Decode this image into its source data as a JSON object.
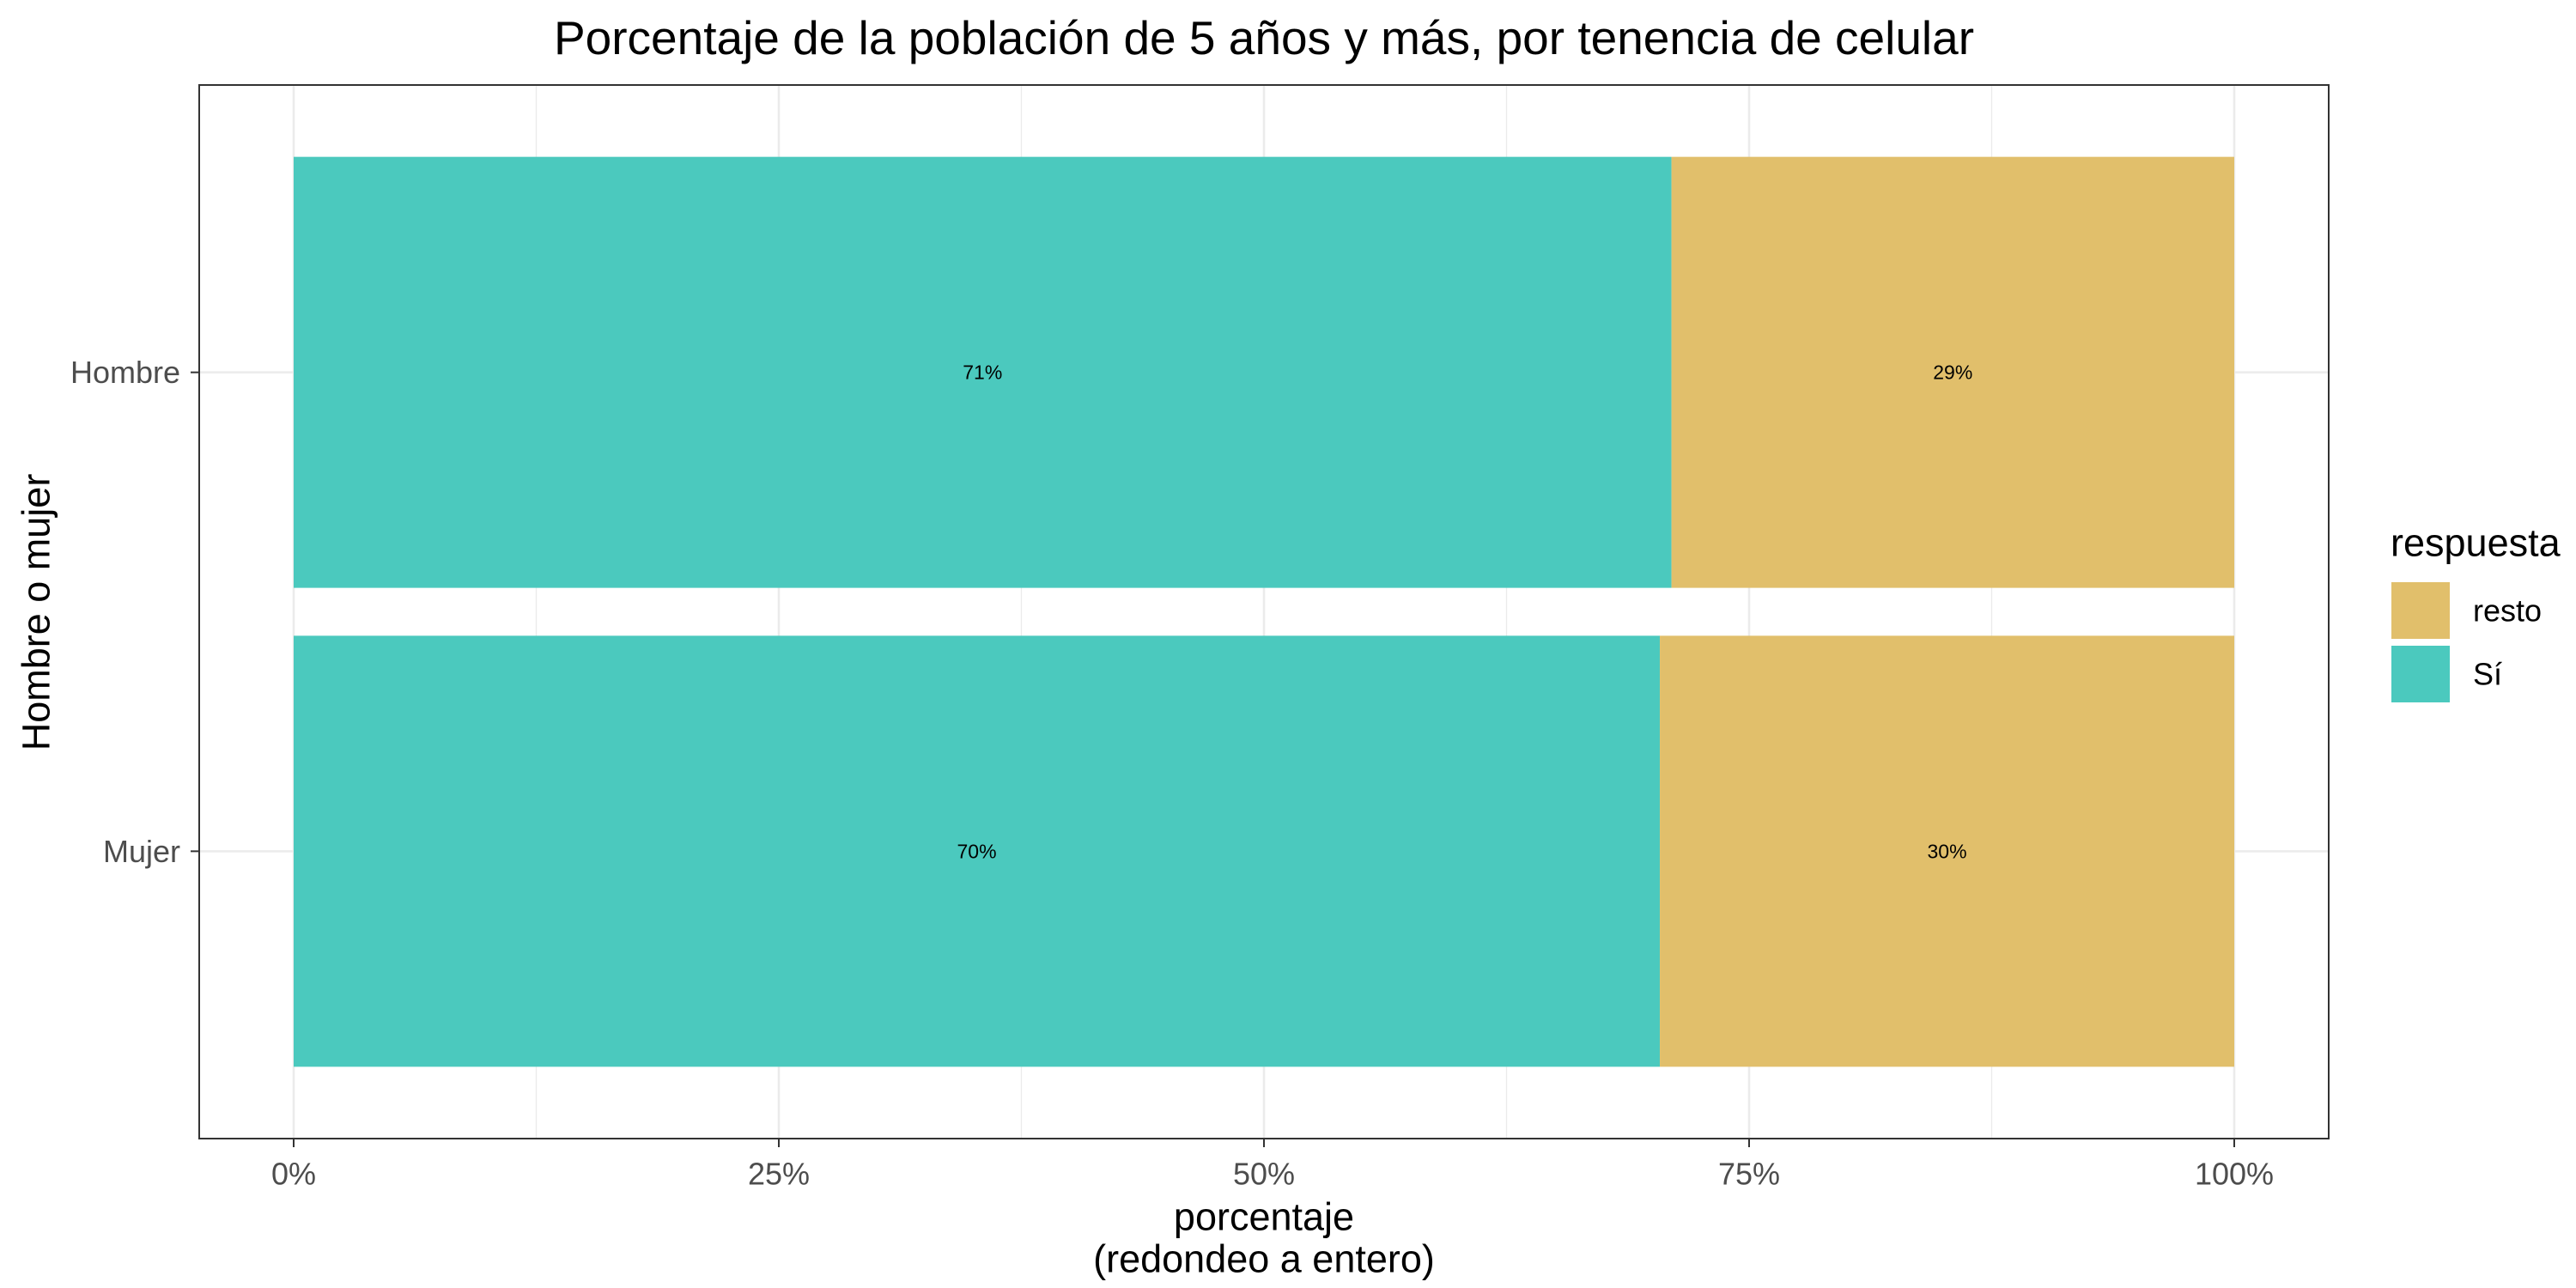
{
  "chart_data": {
    "type": "bar",
    "orientation": "horizontal",
    "stacked": true,
    "title": "Porcentaje de la población de 5 años y más, por tenencia de celular",
    "xlabel": [
      "porcentaje",
      "(redondeo a entero)"
    ],
    "ylabel": "Hombre o mujer",
    "categories": [
      "Hombre",
      "Mujer"
    ],
    "xlim": [
      0,
      100
    ],
    "xticks": [
      0,
      25,
      50,
      75,
      100
    ],
    "xtick_labels": [
      "0%",
      "25%",
      "50%",
      "75%",
      "100%"
    ],
    "grid": true,
    "legend": {
      "title": "respuesta",
      "position": "right"
    },
    "series": [
      {
        "name": "resto",
        "color": "#E1BF6B",
        "values": [
          29.0,
          29.6
        ],
        "labels": [
          "29%",
          "30%"
        ]
      },
      {
        "name": "Sí",
        "color": "#4BC9BE",
        "values": [
          71.0,
          70.4
        ],
        "labels": [
          "71%",
          "70%"
        ]
      }
    ]
  }
}
